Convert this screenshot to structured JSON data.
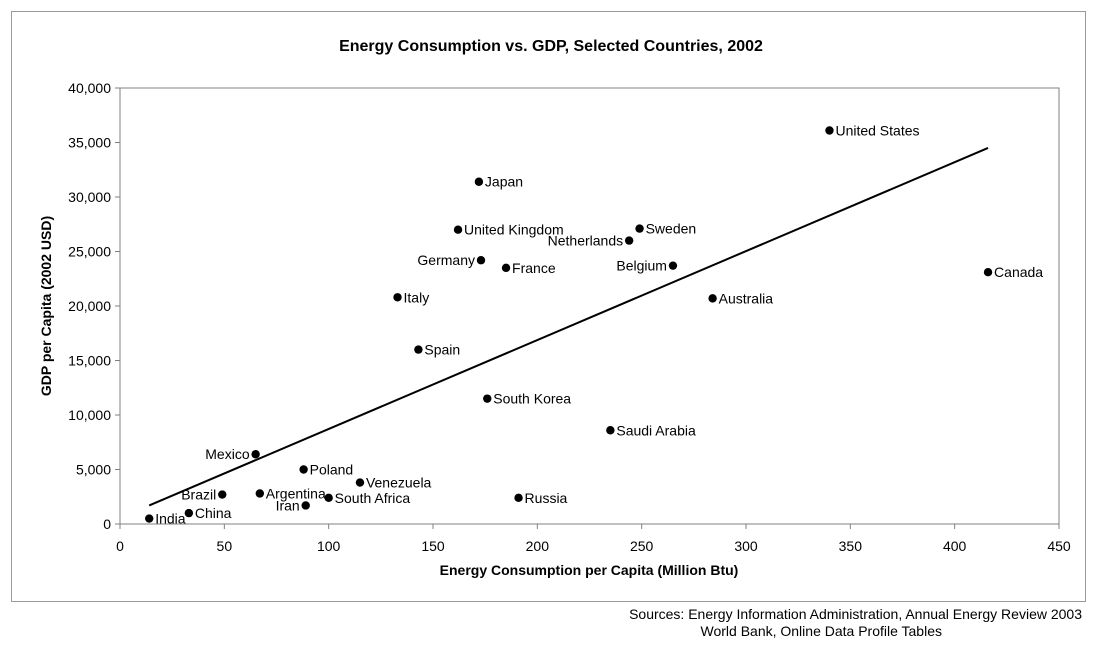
{
  "chart_data": {
    "type": "scatter",
    "title": "Energy Consumption vs. GDP, Selected Countries, 2002",
    "xlabel": "Energy Consumption per Capita (Million Btu)",
    "ylabel": "GDP per Capita (2002 USD)",
    "xlim": [
      0,
      450
    ],
    "ylim": [
      0,
      40000
    ],
    "xticks": [
      0,
      50,
      100,
      150,
      200,
      250,
      300,
      350,
      400,
      450
    ],
    "yticks": [
      0,
      5000,
      10000,
      15000,
      20000,
      25000,
      30000,
      35000,
      40000
    ],
    "ytick_labels": [
      "0",
      "5,000",
      "10,000",
      "15,000",
      "20,000",
      "25,000",
      "30,000",
      "35,000",
      "40,000"
    ],
    "grid": false,
    "legend": "none",
    "trendline": {
      "x": [
        14,
        416
      ],
      "y": [
        1700,
        34500
      ]
    },
    "points": [
      {
        "name": "United States",
        "x": 340,
        "y": 36100,
        "label_side": "right"
      },
      {
        "name": "Japan",
        "x": 172,
        "y": 31400,
        "label_side": "right"
      },
      {
        "name": "United Kingdom",
        "x": 162,
        "y": 27000,
        "label_side": "right"
      },
      {
        "name": "Sweden",
        "x": 249,
        "y": 27100,
        "label_side": "right"
      },
      {
        "name": "Netherlands",
        "x": 244,
        "y": 26000,
        "label_side": "left"
      },
      {
        "name": "Germany",
        "x": 173,
        "y": 24200,
        "label_side": "left"
      },
      {
        "name": "France",
        "x": 185,
        "y": 23500,
        "label_side": "right"
      },
      {
        "name": "Belgium",
        "x": 265,
        "y": 23700,
        "label_side": "left"
      },
      {
        "name": "Canada",
        "x": 416,
        "y": 23100,
        "label_side": "right"
      },
      {
        "name": "Italy",
        "x": 133,
        "y": 20800,
        "label_side": "right"
      },
      {
        "name": "Australia",
        "x": 284,
        "y": 20700,
        "label_side": "right"
      },
      {
        "name": "Spain",
        "x": 143,
        "y": 16000,
        "label_side": "right"
      },
      {
        "name": "South Korea",
        "x": 176,
        "y": 11500,
        "label_side": "right"
      },
      {
        "name": "Saudi Arabia",
        "x": 235,
        "y": 8600,
        "label_side": "right"
      },
      {
        "name": "Mexico",
        "x": 65,
        "y": 6400,
        "label_side": "left"
      },
      {
        "name": "Poland",
        "x": 88,
        "y": 5000,
        "label_side": "right"
      },
      {
        "name": "Venezuela",
        "x": 115,
        "y": 3800,
        "label_side": "right"
      },
      {
        "name": "Argentina",
        "x": 67,
        "y": 2800,
        "label_side": "right"
      },
      {
        "name": "Brazil",
        "x": 49,
        "y": 2700,
        "label_side": "left"
      },
      {
        "name": "South Africa",
        "x": 100,
        "y": 2400,
        "label_side": "right"
      },
      {
        "name": "Russia",
        "x": 191,
        "y": 2400,
        "label_side": "right"
      },
      {
        "name": "Iran",
        "x": 89,
        "y": 1700,
        "label_side": "left"
      },
      {
        "name": "China",
        "x": 33,
        "y": 1000,
        "label_side": "right"
      },
      {
        "name": "India",
        "x": 14,
        "y": 500,
        "label_side": "right"
      }
    ]
  },
  "sources": {
    "line1": "Sources: Energy Information Administration, Annual Energy Review 2003",
    "line2": "World Bank, Online Data Profile Tables"
  }
}
